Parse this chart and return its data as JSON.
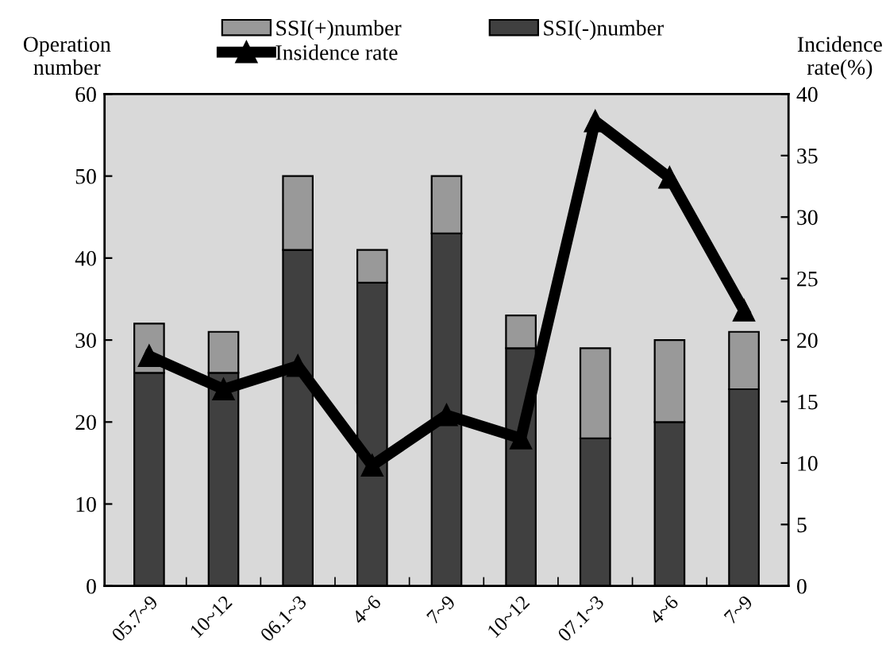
{
  "chart_data": {
    "type": "bar",
    "stacked": true,
    "categories": [
      "05.7~9",
      "10~12",
      "06.1~3",
      "4~6",
      "7~9",
      "10~12",
      "07.1~3",
      "4~6",
      "7~9"
    ],
    "series": [
      {
        "name": "SSI(-)number",
        "color": "#404040",
        "values": [
          26,
          26,
          41,
          37,
          43,
          29,
          18,
          20,
          24
        ]
      },
      {
        "name": "SSI(+)number",
        "color": "#999999",
        "values": [
          6,
          5,
          9,
          4,
          7,
          4,
          11,
          10,
          7
        ]
      },
      {
        "name": "Insidence rate",
        "type": "line",
        "axis": "y2",
        "color": "#000000",
        "marker": "triangle",
        "line_style": "solid",
        "values": [
          18.7,
          16,
          17.9,
          9.8,
          13.9,
          12,
          37.8,
          33.2,
          22.4
        ]
      }
    ],
    "ylabel": "Operation\nnumber",
    "y2label": "Incidence\nrate(%)",
    "ylim": [
      0,
      60
    ],
    "yticks": [
      0,
      10,
      20,
      30,
      40,
      50,
      60
    ],
    "y2lim": [
      0,
      40
    ],
    "y2ticks": [
      0,
      5,
      10,
      15,
      20,
      25,
      30,
      35,
      40
    ],
    "grid": false,
    "legend": "top"
  }
}
